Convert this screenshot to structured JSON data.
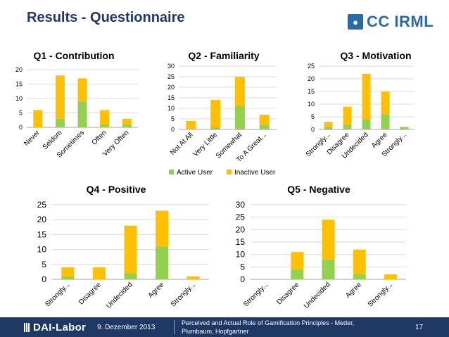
{
  "slide": {
    "title": "Results - Questionnaire",
    "logo_text": "CC IRML",
    "footer": {
      "brand": "DAI-Labor",
      "date": "9. Dezember 2013",
      "reference_line1": "Perceived and Actual Role of Gamification Principles - Meder,",
      "reference_line2": "Plumbaum, Hopfgartner",
      "page_number": "17"
    }
  },
  "legend": {
    "active_label": "Active User",
    "inactive_label": "Inactive User",
    "active_color": "#92d050",
    "inactive_color": "#ffc000"
  },
  "chart_data": [
    {
      "type": "bar",
      "stacked": true,
      "title": "Q1 - Contribution",
      "categories": [
        "Never",
        "Seldom",
        "Sometimes",
        "Often",
        "Very Often"
      ],
      "series": [
        {
          "name": "Active User",
          "values": [
            0,
            3,
            9,
            1,
            1
          ]
        },
        {
          "name": "Inactive User",
          "values": [
            6,
            15,
            8,
            5,
            2
          ]
        }
      ],
      "ylim": [
        0,
        20
      ],
      "yticks": [
        0,
        5,
        10,
        15,
        20
      ],
      "grid": true
    },
    {
      "type": "bar",
      "stacked": true,
      "title": "Q2 - Familiarity",
      "categories": [
        "Not At All",
        "Very Little",
        "Somewhat",
        "To A Great..."
      ],
      "series": [
        {
          "name": "Active User",
          "values": [
            0,
            1,
            11,
            2
          ]
        },
        {
          "name": "Inactive User",
          "values": [
            4,
            13,
            14,
            5
          ]
        }
      ],
      "ylim": [
        0,
        30
      ],
      "yticks": [
        0,
        5,
        10,
        15,
        20,
        25,
        30
      ],
      "grid": true
    },
    {
      "type": "bar",
      "stacked": true,
      "title": "Q3 - Motivation",
      "categories": [
        "Strongly...",
        "Disagree",
        "Undecided",
        "Agree",
        "Strongly..."
      ],
      "series": [
        {
          "name": "Active User",
          "values": [
            1,
            2,
            4,
            6,
            1
          ]
        },
        {
          "name": "Inactive User",
          "values": [
            2,
            7,
            18,
            9,
            0
          ]
        }
      ],
      "ylim": [
        0,
        25
      ],
      "yticks": [
        0,
        5,
        10,
        15,
        20,
        25
      ],
      "grid": true
    },
    {
      "type": "bar",
      "stacked": true,
      "title": "Q4 - Positive",
      "categories": [
        "Strongly...",
        "Disagree",
        "Undecided",
        "Agree",
        "Strongly..."
      ],
      "series": [
        {
          "name": "Active User",
          "values": [
            1,
            0,
            2,
            11,
            0
          ]
        },
        {
          "name": "Inactive User",
          "values": [
            3,
            4,
            16,
            12,
            1
          ]
        }
      ],
      "ylim": [
        0,
        25
      ],
      "yticks": [
        0,
        5,
        10,
        15,
        20,
        25
      ],
      "grid": true
    },
    {
      "type": "bar",
      "stacked": true,
      "title": "Q5 - Negative",
      "categories": [
        "Strongly...",
        "Disagree",
        "Undecided",
        "Agree",
        "Strongly..."
      ],
      "series": [
        {
          "name": "Active User",
          "values": [
            0,
            4,
            8,
            2,
            0
          ]
        },
        {
          "name": "Inactive User",
          "values": [
            0,
            7,
            16,
            10,
            2
          ]
        }
      ],
      "ylim": [
        0,
        30
      ],
      "yticks": [
        0,
        5,
        10,
        15,
        20,
        25,
        30
      ],
      "grid": true
    }
  ]
}
